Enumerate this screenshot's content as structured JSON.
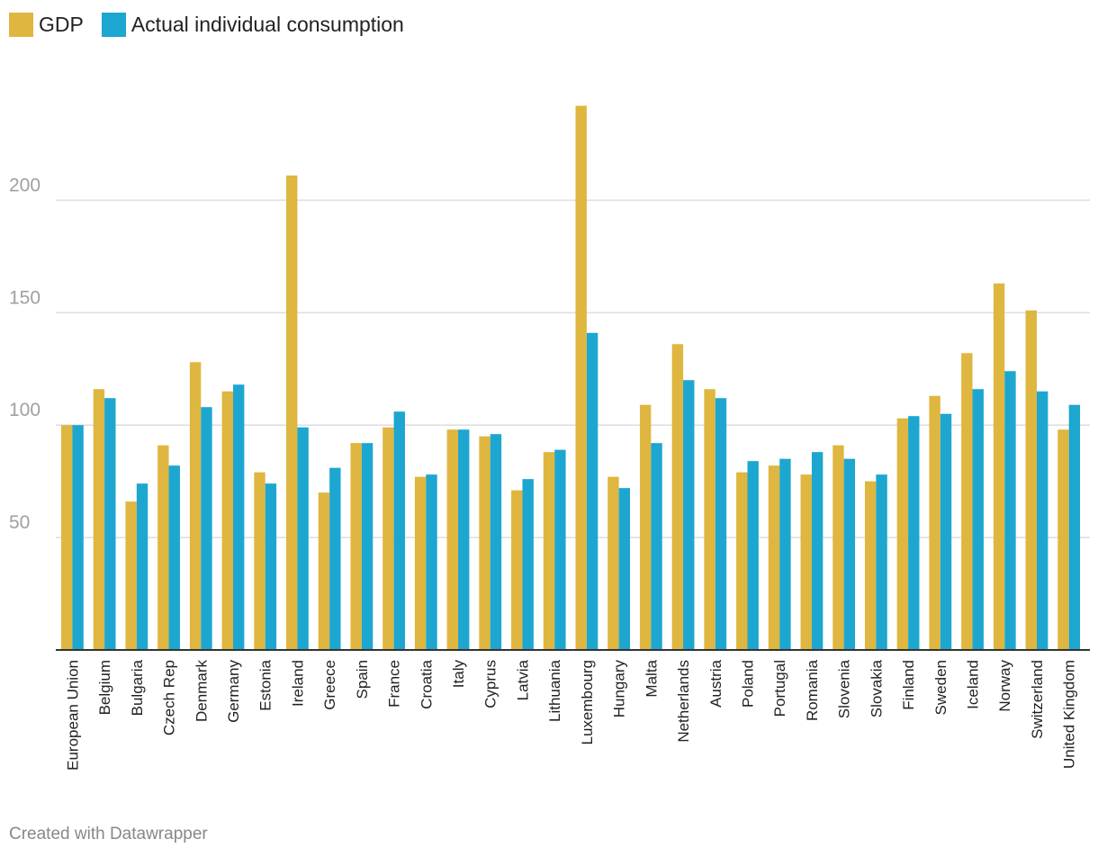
{
  "legend": {
    "series0": "GDP",
    "series1": "Actual individual consumption"
  },
  "footer": "Created with Datawrapper",
  "colors": {
    "gdp": "#dfb63f",
    "aic": "#1da7d0",
    "grid": "#dddddd",
    "axis": "#333333"
  },
  "chart_data": {
    "type": "bar",
    "title": "",
    "xlabel": "",
    "ylabel": "",
    "ylim": [
      0,
      240
    ],
    "yticks": [
      50,
      100,
      150,
      200
    ],
    "categories": [
      "European Union",
      "Belgium",
      "Bulgaria",
      "Czech Rep",
      "Denmark",
      "Germany",
      "Estonia",
      "Ireland",
      "Greece",
      "Spain",
      "France",
      "Croatia",
      "Italy",
      "Cyprus",
      "Latvia",
      "Lithuania",
      "Luxembourg",
      "Hungary",
      "Malta",
      "Netherlands",
      "Austria",
      "Poland",
      "Portugal",
      "Romania",
      "Slovenia",
      "Slovakia",
      "Finland",
      "Sweden",
      "Iceland",
      "Norway",
      "Switzerland",
      "United Kingdom"
    ],
    "series": [
      {
        "name": "GDP",
        "values": [
          100,
          116,
          66,
          91,
          128,
          115,
          79,
          211,
          70,
          92,
          99,
          77,
          98,
          95,
          71,
          88,
          242,
          77,
          109,
          136,
          116,
          79,
          82,
          78,
          91,
          75,
          103,
          113,
          132,
          163,
          151,
          98
        ]
      },
      {
        "name": "Actual individual consumption",
        "values": [
          100,
          112,
          74,
          82,
          108,
          118,
          74,
          99,
          81,
          92,
          106,
          78,
          98,
          96,
          76,
          89,
          141,
          72,
          92,
          120,
          112,
          84,
          85,
          88,
          85,
          78,
          104,
          105,
          116,
          124,
          115,
          109
        ]
      }
    ]
  }
}
